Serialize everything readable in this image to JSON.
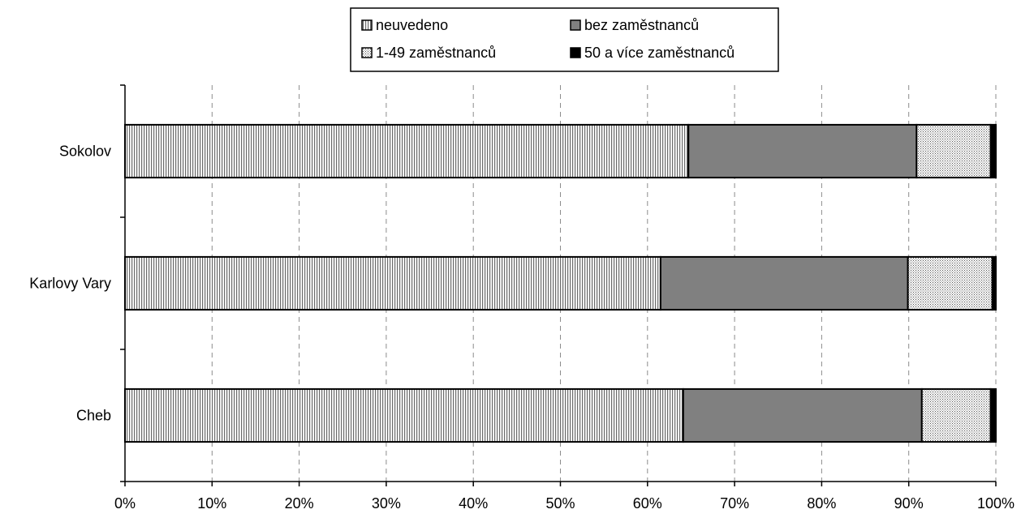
{
  "chart_data": {
    "type": "bar",
    "orientation": "horizontal",
    "stacked": "percent",
    "categories": [
      "Sokolov",
      "Karlovy Vary",
      "Cheb"
    ],
    "series": [
      {
        "name": "neuvedeno",
        "values": [
          64.7,
          61.5,
          64.1
        ],
        "color": "#ffffff",
        "pattern": "vertical-lines"
      },
      {
        "name": "bez zaměstnanců",
        "values": [
          26.2,
          28.4,
          27.4
        ],
        "color": "#808080",
        "pattern": "solid"
      },
      {
        "name": "1-49 zaměstnanců",
        "values": [
          8.5,
          9.7,
          7.9
        ],
        "color": "#c0c0c0",
        "pattern": "dots"
      },
      {
        "name": "50 a více zaměstnanců",
        "values": [
          0.6,
          0.4,
          0.6
        ],
        "color": "#000000",
        "pattern": "solid"
      }
    ],
    "xlim": [
      0,
      100
    ],
    "xticks": [
      "0%",
      "10%",
      "20%",
      "30%",
      "40%",
      "50%",
      "60%",
      "70%",
      "80%",
      "90%",
      "100%"
    ],
    "grid": "vertical-dashed",
    "legend_position": "top",
    "title": "",
    "xlabel": "",
    "ylabel": ""
  }
}
